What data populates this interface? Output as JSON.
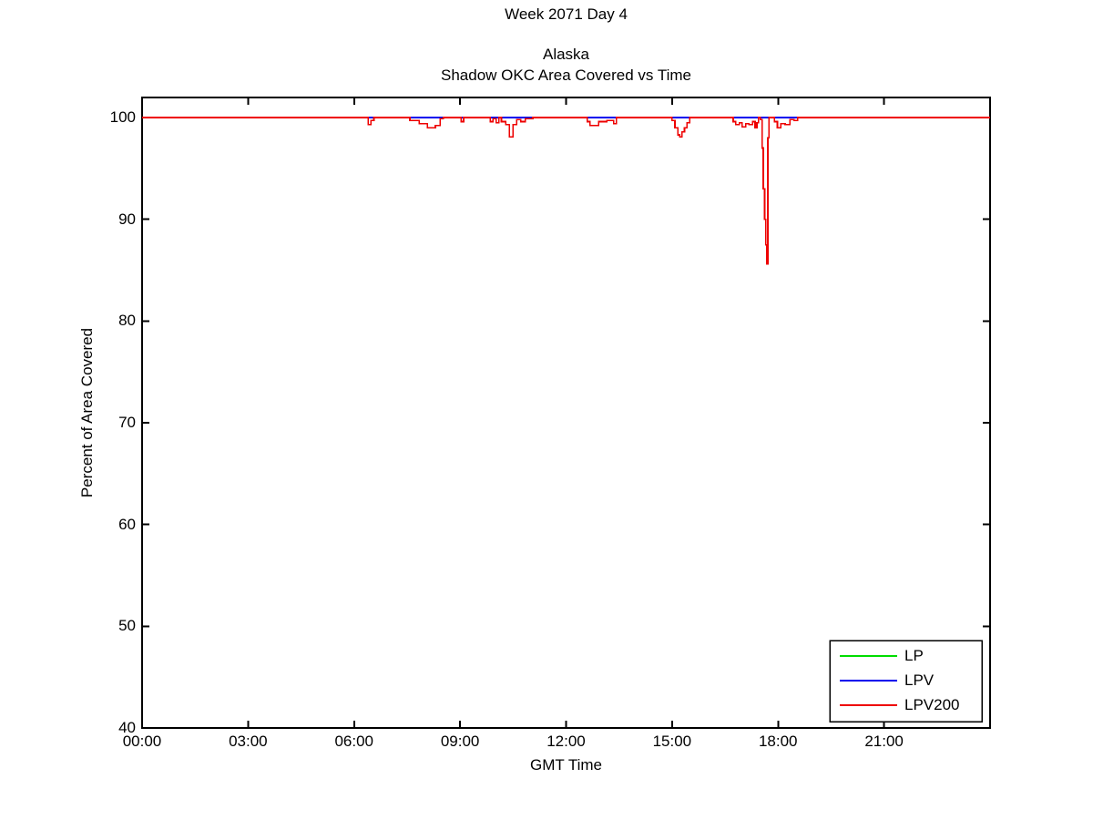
{
  "title": {
    "line1": "Week 2071 Day 4",
    "line2": "Alaska",
    "line3": "Shadow OKC Area Covered vs Time"
  },
  "axes": {
    "xlabel": "GMT Time",
    "ylabel": "Percent of Area Covered",
    "x_tick_hours": [
      0,
      3,
      6,
      9,
      12,
      15,
      18,
      21
    ],
    "x_tick_labels": [
      "00:00",
      "03:00",
      "06:00",
      "09:00",
      "12:00",
      "15:00",
      "18:00",
      "21:00"
    ],
    "y_tick_values": [
      40,
      50,
      60,
      70,
      80,
      90,
      100
    ],
    "y_tick_labels": [
      "40",
      "50",
      "60",
      "70",
      "80",
      "90",
      "100"
    ]
  },
  "legend": {
    "position": "lower right",
    "entries": [
      "LP",
      "LPV",
      "LPV200"
    ]
  },
  "chart_data": {
    "type": "line",
    "title": "Shadow OKC Area Covered vs Time",
    "subtitle": "Alaska",
    "suptitle": "Week 2071 Day 4",
    "xlabel": "GMT Time",
    "ylabel": "Percent of Area Covered",
    "x_unit": "hours GMT",
    "xlim": [
      0,
      24
    ],
    "ylim": [
      40,
      102
    ],
    "grid": false,
    "legend_position": "lower right",
    "series": [
      {
        "name": "LP",
        "color": "#00dd00",
        "points": [
          [
            0,
            100
          ],
          [
            24,
            100
          ]
        ]
      },
      {
        "name": "LPV",
        "color": "#0000ee",
        "points": [
          [
            0,
            100
          ],
          [
            24,
            100
          ]
        ]
      },
      {
        "name": "LPV200",
        "color": "#ee0000",
        "points": [
          [
            0,
            100
          ],
          [
            6.4,
            100
          ],
          [
            6.4,
            99.3
          ],
          [
            6.48,
            99.3
          ],
          [
            6.48,
            99.7
          ],
          [
            6.56,
            99.7
          ],
          [
            6.56,
            100
          ],
          [
            7.58,
            100
          ],
          [
            7.58,
            99.7
          ],
          [
            7.84,
            99.7
          ],
          [
            7.84,
            99.4
          ],
          [
            8.08,
            99.4
          ],
          [
            8.08,
            99.0
          ],
          [
            8.3,
            99.0
          ],
          [
            8.3,
            99.2
          ],
          [
            8.44,
            99.2
          ],
          [
            8.44,
            99.9
          ],
          [
            8.53,
            99.9
          ],
          [
            8.53,
            100
          ],
          [
            9.03,
            100
          ],
          [
            9.03,
            99.6
          ],
          [
            9.1,
            99.6
          ],
          [
            9.1,
            100
          ],
          [
            9.85,
            100
          ],
          [
            9.85,
            99.6
          ],
          [
            9.93,
            99.6
          ],
          [
            9.93,
            99.9
          ],
          [
            10.02,
            99.9
          ],
          [
            10.02,
            99.5
          ],
          [
            10.1,
            99.5
          ],
          [
            10.1,
            100
          ],
          [
            10.17,
            100
          ],
          [
            10.17,
            99.6
          ],
          [
            10.29,
            99.6
          ],
          [
            10.29,
            99.3
          ],
          [
            10.4,
            99.3
          ],
          [
            10.4,
            98.1
          ],
          [
            10.5,
            98.1
          ],
          [
            10.5,
            99.3
          ],
          [
            10.6,
            99.3
          ],
          [
            10.6,
            99.8
          ],
          [
            10.72,
            99.8
          ],
          [
            10.72,
            99.6
          ],
          [
            10.85,
            99.6
          ],
          [
            10.85,
            99.9
          ],
          [
            11.06,
            99.9
          ],
          [
            11.06,
            100
          ],
          [
            12.6,
            100
          ],
          [
            12.6,
            99.6
          ],
          [
            12.68,
            99.6
          ],
          [
            12.68,
            99.2
          ],
          [
            12.92,
            99.2
          ],
          [
            12.92,
            99.6
          ],
          [
            13.15,
            99.6
          ],
          [
            13.15,
            99.7
          ],
          [
            13.35,
            99.7
          ],
          [
            13.35,
            99.4
          ],
          [
            13.42,
            99.4
          ],
          [
            13.42,
            100
          ],
          [
            15.0,
            100
          ],
          [
            15.0,
            99.7
          ],
          [
            15.08,
            99.7
          ],
          [
            15.08,
            99.0
          ],
          [
            15.16,
            99.0
          ],
          [
            15.16,
            98.3
          ],
          [
            15.22,
            98.3
          ],
          [
            15.22,
            98.1
          ],
          [
            15.28,
            98.1
          ],
          [
            15.28,
            98.6
          ],
          [
            15.35,
            98.6
          ],
          [
            15.35,
            99.0
          ],
          [
            15.42,
            99.0
          ],
          [
            15.42,
            99.5
          ],
          [
            15.5,
            99.5
          ],
          [
            15.5,
            100
          ],
          [
            16.73,
            100
          ],
          [
            16.73,
            99.6
          ],
          [
            16.8,
            99.6
          ],
          [
            16.8,
            99.3
          ],
          [
            16.9,
            99.3
          ],
          [
            16.9,
            99.5
          ],
          [
            16.98,
            99.5
          ],
          [
            16.98,
            99.1
          ],
          [
            17.08,
            99.1
          ],
          [
            17.08,
            99.4
          ],
          [
            17.18,
            99.4
          ],
          [
            17.18,
            99.3
          ],
          [
            17.28,
            99.3
          ],
          [
            17.28,
            99.6
          ],
          [
            17.35,
            99.6
          ],
          [
            17.35,
            99.0
          ],
          [
            17.4,
            99.0
          ],
          [
            17.4,
            99.5
          ],
          [
            17.45,
            99.5
          ],
          [
            17.45,
            100
          ],
          [
            17.5,
            100
          ],
          [
            17.5,
            99.8
          ],
          [
            17.55,
            99.8
          ],
          [
            17.55,
            97.0
          ],
          [
            17.58,
            97.0
          ],
          [
            17.58,
            93.0
          ],
          [
            17.62,
            93.0
          ],
          [
            17.62,
            90.0
          ],
          [
            17.65,
            90.0
          ],
          [
            17.65,
            87.5
          ],
          [
            17.68,
            87.5
          ],
          [
            17.68,
            85.6
          ],
          [
            17.71,
            85.6
          ],
          [
            17.71,
            98.0
          ],
          [
            17.74,
            98.0
          ],
          [
            17.74,
            100
          ],
          [
            17.9,
            100
          ],
          [
            17.9,
            99.6
          ],
          [
            17.98,
            99.6
          ],
          [
            17.98,
            99.0
          ],
          [
            18.08,
            99.0
          ],
          [
            18.08,
            99.4
          ],
          [
            18.2,
            99.4
          ],
          [
            18.2,
            99.3
          ],
          [
            18.33,
            99.3
          ],
          [
            18.33,
            99.8
          ],
          [
            18.45,
            99.8
          ],
          [
            18.45,
            99.7
          ],
          [
            18.55,
            99.7
          ],
          [
            18.55,
            100
          ],
          [
            24,
            100
          ]
        ]
      }
    ]
  }
}
